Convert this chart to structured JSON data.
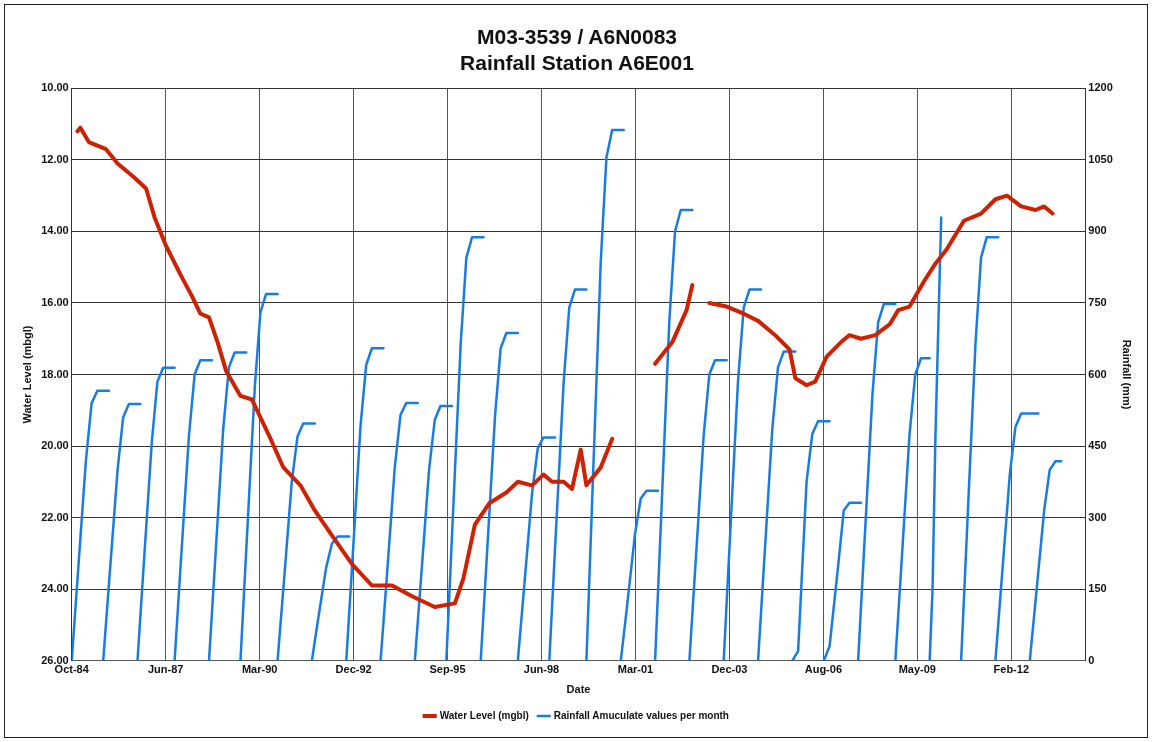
{
  "chart_data": {
    "type": "line",
    "title": "M03-3539 / A6N0083\nRainfall Station A6E001",
    "xlabel": "Date",
    "ylabel": "Water Level (mbgl)",
    "y2label": "Rainfall (mm)",
    "xlim": [
      "1984-10-01",
      "2014-04-15"
    ],
    "xticks": [
      {
        "value": "1984-10-01",
        "label": "Oct-84"
      },
      {
        "value": "1987-06-28",
        "label": "Jun-87"
      },
      {
        "value": "1990-03-24",
        "label": "Mar-90"
      },
      {
        "value": "1992-12-18",
        "label": "Dec-92"
      },
      {
        "value": "1995-09-14",
        "label": "Sep-95"
      },
      {
        "value": "1998-06-10",
        "label": "Jun-98"
      },
      {
        "value": "2001-03-06",
        "label": "Mar-01"
      },
      {
        "value": "2003-12-01",
        "label": "Dec-03"
      },
      {
        "value": "2006-08-27",
        "label": "Aug-06"
      },
      {
        "value": "2009-05-23",
        "label": "May-09"
      },
      {
        "value": "2012-02-17",
        "label": "Feb-12"
      }
    ],
    "ylim": [
      26,
      10
    ],
    "yticks": [
      {
        "value": 10,
        "label": "10.00"
      },
      {
        "value": 12,
        "label": "12.00"
      },
      {
        "value": 14,
        "label": "14.00"
      },
      {
        "value": 16,
        "label": "16.00"
      },
      {
        "value": 18,
        "label": "18.00"
      },
      {
        "value": 20,
        "label": "20.00"
      },
      {
        "value": 22,
        "label": "22.00"
      },
      {
        "value": 24,
        "label": "24.00"
      },
      {
        "value": 26,
        "label": "26.00"
      }
    ],
    "y2lim": [
      0,
      1200
    ],
    "y2ticks": [
      0,
      150,
      300,
      450,
      600,
      750,
      900,
      1050,
      1200
    ],
    "grid": true,
    "legend": "bottom",
    "series": [
      {
        "name": "Water Level (mgbl)",
        "color": "#cc2200",
        "type": "line",
        "x": [
          "1984-12",
          "1985-01",
          "1985-04",
          "1985-07",
          "1985-10",
          "1986-02",
          "1986-08",
          "1986-12",
          "1987-03",
          "1987-07",
          "1987-12",
          "1988-04",
          "1988-07",
          "1988-10",
          "1989-01",
          "1989-04",
          "1989-09",
          "1990-01",
          "1990-07",
          "1990-12",
          "1991-06",
          "1991-11",
          "1992-05",
          "1992-12",
          "1993-07",
          "1994-02",
          "1994-09",
          "1995-05",
          "1995-12",
          "1996-03",
          "1996-07",
          "1996-12",
          "1997-06",
          "1997-10",
          "1998-03",
          "1998-07",
          "1998-10",
          "1999-02",
          "1999-05",
          "1999-08",
          "1999-10",
          "2000-03",
          "2000-07",
          "2001-01",
          "2001-10",
          "2002-04",
          "2002-09",
          "2002-11",
          "2003-02",
          "2003-05",
          "2003-11",
          "2004-05",
          "2004-10",
          "2005-04",
          "2005-09",
          "2005-11",
          "2006-03",
          "2006-06",
          "2006-10",
          "2007-03",
          "2007-06",
          "2007-10",
          "2008-03",
          "2008-08",
          "2008-11",
          "2009-03",
          "2009-08",
          "2009-12",
          "2010-04",
          "2010-10",
          "2011-04",
          "2011-09",
          "2012-01",
          "2012-06",
          "2012-11",
          "2013-02",
          "2013-05"
        ],
        "values": [
          11.2,
          11.1,
          11.5,
          11.6,
          11.7,
          12.1,
          12.5,
          12.8,
          13.6,
          14.4,
          15.2,
          15.8,
          16.3,
          16.4,
          17.1,
          17.9,
          18.6,
          18.7,
          19.7,
          20.6,
          21.1,
          21.8,
          22.5,
          23.3,
          23.9,
          23.9,
          24.2,
          24.5,
          24.4,
          23.7,
          22.2,
          21.6,
          21.3,
          21.0,
          21.1,
          20.8,
          21.0,
          21.0,
          21.2,
          20.1,
          21.1,
          20.6,
          19.8,
          null,
          17.7,
          17.1,
          16.2,
          15.5,
          null,
          16.0,
          16.1,
          16.3,
          16.5,
          16.9,
          17.3,
          18.1,
          18.3,
          18.2,
          17.5,
          17.1,
          16.9,
          17.0,
          16.9,
          16.6,
          16.2,
          16.1,
          15.4,
          14.9,
          14.5,
          13.7,
          13.5,
          13.1,
          13.0,
          13.3,
          13.4,
          13.3,
          13.5
        ]
      },
      {
        "name": "Rainfall Amuculate values per month",
        "color": "#1a7be0",
        "type": "line",
        "axis": "y2",
        "x": [
          "1984-10",
          "1984-12",
          "1985-03",
          "1985-05",
          "1985-07",
          "1985-11"
        ],
        "values": [
          0,
          170,
          420,
          540,
          566,
          566
        ]
      },
      {
        "color": "#1a7be0",
        "type": "line",
        "axis": "y2",
        "x": [
          "1985-09",
          "1985-11",
          "1986-02",
          "1986-04",
          "1986-06",
          "1986-10"
        ],
        "values": [
          0,
          160,
          400,
          510,
          538,
          538
        ]
      },
      {
        "color": "#1a7be0",
        "type": "line",
        "axis": "y2",
        "x": [
          "1986-09",
          "1986-11",
          "1987-02",
          "1987-04",
          "1987-06",
          "1987-10"
        ],
        "values": [
          0,
          185,
          460,
          585,
          614,
          614
        ]
      },
      {
        "color": "#1a7be0",
        "type": "line",
        "axis": "y2",
        "x": [
          "1987-10",
          "1987-12",
          "1988-03",
          "1988-05",
          "1988-07",
          "1988-11"
        ],
        "values": [
          0,
          190,
          470,
          600,
          630,
          630
        ]
      },
      {
        "color": "#1a7be0",
        "type": "line",
        "axis": "y2",
        "x": [
          "1988-10",
          "1988-12",
          "1989-03",
          "1989-05",
          "1989-07",
          "1989-11"
        ],
        "values": [
          0,
          195,
          485,
          615,
          646,
          646
        ]
      },
      {
        "color": "#1a7be0",
        "type": "line",
        "axis": "y2",
        "x": [
          "1989-09",
          "1989-11",
          "1990-02",
          "1990-04",
          "1990-06",
          "1990-10"
        ],
        "values": [
          0,
          230,
          575,
          730,
          769,
          769
        ]
      },
      {
        "color": "#1a7be0",
        "type": "line",
        "axis": "y2",
        "x": [
          "1990-10",
          "1990-12",
          "1991-03",
          "1991-05",
          "1991-07",
          "1991-11"
        ],
        "values": [
          0,
          150,
          375,
          470,
          497,
          497
        ]
      },
      {
        "color": "#1a7be0",
        "type": "line",
        "axis": "y2",
        "x": [
          "1991-10",
          "1991-12",
          "1992-03",
          "1992-05",
          "1992-07",
          "1992-11"
        ],
        "values": [
          0,
          80,
          195,
          245,
          260,
          260
        ]
      },
      {
        "color": "#1a7be0",
        "type": "line",
        "axis": "y2",
        "x": [
          "1992-10",
          "1992-12",
          "1993-03",
          "1993-05",
          "1993-07",
          "1993-11"
        ],
        "values": [
          0,
          195,
          490,
          620,
          655,
          655
        ]
      },
      {
        "color": "#1a7be0",
        "type": "line",
        "axis": "y2",
        "x": [
          "1993-10",
          "1993-12",
          "1994-03",
          "1994-05",
          "1994-07",
          "1994-11"
        ],
        "values": [
          0,
          160,
          405,
          515,
          540,
          540
        ]
      },
      {
        "color": "#1a7be0",
        "type": "line",
        "axis": "y2",
        "x": [
          "1994-10",
          "1994-12",
          "1995-03",
          "1995-05",
          "1995-07",
          "1995-11"
        ],
        "values": [
          0,
          160,
          400,
          505,
          534,
          534
        ]
      },
      {
        "color": "#1a7be0",
        "type": "line",
        "axis": "y2",
        "x": [
          "1995-09",
          "1995-11",
          "1996-02",
          "1996-04",
          "1996-06",
          "1996-10"
        ],
        "values": [
          0,
          265,
          665,
          845,
          888,
          888
        ]
      },
      {
        "color": "#1a7be0",
        "type": "line",
        "axis": "y2",
        "x": [
          "1996-09",
          "1996-11",
          "1997-02",
          "1997-04",
          "1997-06",
          "1997-10"
        ],
        "values": [
          0,
          205,
          515,
          655,
          687,
          687
        ]
      },
      {
        "color": "#1a7be0",
        "type": "line",
        "axis": "y2",
        "x": [
          "1997-10",
          "1997-12",
          "1998-03",
          "1998-05",
          "1998-07",
          "1998-11"
        ],
        "values": [
          0,
          140,
          350,
          445,
          468,
          468
        ]
      },
      {
        "color": "#1a7be0",
        "type": "line",
        "axis": "y2",
        "x": [
          "1998-09",
          "1998-11",
          "1999-02",
          "1999-04",
          "1999-06",
          "1999-10"
        ],
        "values": [
          0,
          235,
          585,
          740,
          778,
          778
        ]
      },
      {
        "color": "#1a7be0",
        "type": "line",
        "axis": "y2",
        "x": [
          "1999-10",
          "1999-12",
          "2000-03",
          "2000-05",
          "2000-07",
          "2000-11"
        ],
        "values": [
          0,
          335,
          835,
          1055,
          1113,
          1113
        ]
      },
      {
        "color": "#1a7be0",
        "type": "line",
        "axis": "y2",
        "x": [
          "2000-10",
          "2000-12",
          "2001-03",
          "2001-05",
          "2001-07",
          "2001-11"
        ],
        "values": [
          0,
          105,
          265,
          340,
          356,
          356
        ]
      },
      {
        "color": "#1a7be0",
        "type": "line",
        "axis": "y2",
        "x": [
          "2001-10",
          "2001-12",
          "2002-03",
          "2002-05",
          "2002-07",
          "2002-11"
        ],
        "values": [
          0,
          285,
          710,
          900,
          945,
          945
        ]
      },
      {
        "color": "#1a7be0",
        "type": "line",
        "axis": "y2",
        "x": [
          "2002-10",
          "2002-12",
          "2003-03",
          "2003-05",
          "2003-07",
          "2003-11"
        ],
        "values": [
          0,
          190,
          470,
          600,
          630,
          630
        ]
      },
      {
        "color": "#1a7be0",
        "type": "line",
        "axis": "y2",
        "x": [
          "2003-10",
          "2003-12",
          "2004-03",
          "2004-05",
          "2004-07",
          "2004-11"
        ],
        "values": [
          0,
          235,
          585,
          740,
          778,
          778
        ]
      },
      {
        "color": "#1a7be0",
        "type": "line",
        "axis": "y2",
        "x": [
          "2004-10",
          "2004-12",
          "2005-03",
          "2005-05",
          "2005-07",
          "2005-11"
        ],
        "values": [
          0,
          195,
          485,
          615,
          648,
          648
        ]
      },
      {
        "color": "#1a7be0",
        "type": "line",
        "axis": "y2",
        "x": [
          "2005-10",
          "2005-12",
          "2006-03",
          "2006-05",
          "2006-07",
          "2006-11"
        ],
        "values": [
          0,
          20,
          375,
          475,
          502,
          502
        ]
      },
      {
        "color": "#1a7be0",
        "type": "line",
        "axis": "y2",
        "x": [
          "2006-09",
          "2006-11",
          "2007-02",
          "2007-04",
          "2007-06",
          "2007-10"
        ],
        "values": [
          0,
          30,
          200,
          315,
          331,
          331
        ]
      },
      {
        "color": "#1a7be0",
        "type": "line",
        "axis": "y2",
        "x": [
          "2007-09",
          "2007-11",
          "2008-02",
          "2008-04",
          "2008-06",
          "2008-10"
        ],
        "values": [
          0,
          225,
          560,
          710,
          748,
          748
        ]
      },
      {
        "color": "#1a7be0",
        "type": "line",
        "axis": "y2",
        "x": [
          "2008-10",
          "2008-12",
          "2009-03",
          "2009-05",
          "2009-07",
          "2009-10"
        ],
        "values": [
          0,
          190,
          475,
          600,
          634,
          634
        ]
      },
      {
        "color": "#1a7be0",
        "type": "line",
        "axis": "y2",
        "x": [
          "2009-10",
          "2009-11",
          "2009-12",
          "2010-01",
          "2010-02"
        ],
        "values": [
          0,
          150,
          465,
          700,
          929
        ]
      },
      {
        "color": "#1a7be0",
        "type": "line",
        "axis": "y2",
        "x": [
          "2010-09",
          "2010-11",
          "2011-02",
          "2011-04",
          "2011-06",
          "2011-10"
        ],
        "values": [
          0,
          265,
          665,
          845,
          888,
          888
        ]
      },
      {
        "color": "#1a7be0",
        "type": "line",
        "axis": "y2",
        "x": [
          "2011-09",
          "2011-11",
          "2012-02",
          "2012-04",
          "2012-06",
          "2012-12"
        ],
        "values": [
          0,
          155,
          390,
          490,
          518,
          518
        ]
      },
      {
        "color": "#1a7be0",
        "type": "line",
        "axis": "y2",
        "x": [
          "2012-09",
          "2012-11",
          "2013-02",
          "2013-04",
          "2013-06",
          "2013-08"
        ],
        "values": [
          0,
          125,
          315,
          400,
          418,
          418
        ]
      }
    ]
  }
}
